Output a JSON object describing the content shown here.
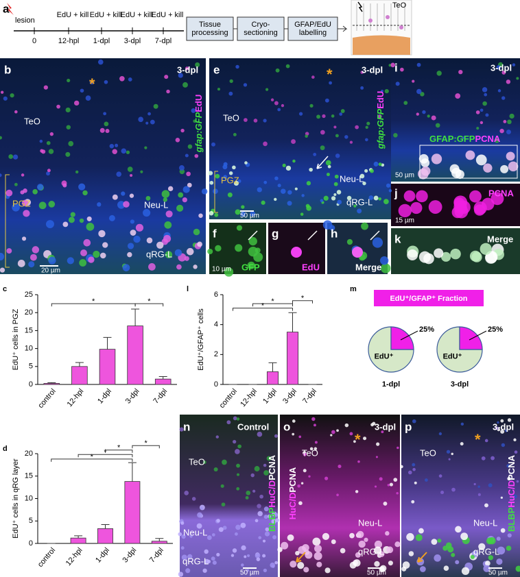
{
  "timeline": {
    "label": "a",
    "lesion": "lesion",
    "points": [
      "0",
      "12-hpl",
      "1-dpl",
      "3-dpl",
      "7-dpl"
    ],
    "treatments": [
      "EdU + kill",
      "EdU + kill",
      "EdU + kill",
      "EdU + kill"
    ],
    "steps": [
      [
        "Tissue",
        "processing"
      ],
      [
        "Cryo-",
        "sectioning"
      ],
      [
        "GFAP/EdU",
        "labelling"
      ]
    ],
    "schematic_label": "TeO"
  },
  "images": {
    "b": {
      "label": "b",
      "condition": "3-dpl",
      "marker": "*",
      "regions": [
        "TeO",
        "PGZ",
        "Neu-L",
        "qRG-L"
      ],
      "stain": [
        "gfap:GFP",
        "EdU"
      ],
      "scale": "20 µm"
    },
    "e": {
      "label": "e",
      "condition": "3-dpl",
      "marker": "*",
      "regions": [
        "TeO",
        "PGZ",
        "Neu-L",
        "qRG-L"
      ],
      "stain": [
        "gfap:GFP",
        "EdU"
      ],
      "scale": "50 µm"
    },
    "f": {
      "label": "f",
      "channel": "GFP",
      "scale": "10 µm"
    },
    "g": {
      "label": "g",
      "channel": "EdU"
    },
    "h": {
      "label": "h",
      "channel": "Merge"
    },
    "i": {
      "label": "i",
      "condition": "3-dpl",
      "stain": [
        "GFAP:GFP",
        "PCNA"
      ],
      "scale": "50 µm"
    },
    "j": {
      "label": "j",
      "channel": "PCNA",
      "scale": "15 µm"
    },
    "k": {
      "label": "k",
      "channel": "Merge"
    },
    "n": {
      "label": "n",
      "condition": "Control",
      "regions": [
        "TeO",
        "Neu-L",
        "qRG-L"
      ],
      "stain": [
        "BLBP",
        "HuC/D",
        "PCNA"
      ],
      "scale": "50 µm"
    },
    "o": {
      "label": "o",
      "condition": "3-dpl",
      "marker": "*",
      "regions": [
        "TeO",
        "Neu-L",
        "qRG-L"
      ],
      "stain": [
        "HuC/D",
        "PCNA"
      ],
      "scale": "50 µm"
    },
    "p": {
      "label": "p",
      "condition": "3-dpl",
      "marker": "*",
      "regions": [
        "TeO",
        "Neu-L",
        "qRG-L"
      ],
      "stain": [
        "BLBP",
        "HuC/D",
        "PCNA"
      ],
      "scale": "50 µm"
    }
  },
  "chart_data": [
    {
      "type": "bar",
      "label": "c",
      "ylabel": "EdU⁺ cells in PGZ",
      "color": "#ee55dd",
      "categories": [
        "control",
        "12-hpl",
        "1-dpl",
        "3-dpl",
        "7-dpl"
      ],
      "values": [
        0.3,
        5,
        9.8,
        16.3,
        1.5
      ],
      "errors": [
        0.2,
        1.1,
        3.3,
        4.7,
        0.7
      ],
      "ylim": [
        0,
        25
      ],
      "yticks": [
        0,
        5,
        10,
        15,
        20,
        25
      ],
      "significance": [
        {
          "between": [
            0,
            3
          ],
          "y": 22.5,
          "label": "*"
        },
        {
          "between": [
            3,
            4
          ],
          "y": 22.5,
          "label": "*"
        }
      ]
    },
    {
      "type": "bar",
      "label": "l",
      "ylabel": "EdU⁺/GFAP⁺ cells",
      "color": "#ee55dd",
      "categories": [
        "control",
        "12-hpl",
        "1-dpl",
        "3-dpl",
        "7-dpl"
      ],
      "values": [
        0,
        0,
        0.85,
        3.5,
        0
      ],
      "errors": [
        0,
        0,
        0.6,
        1.3,
        0
      ],
      "ylim": [
        0,
        6
      ],
      "yticks": [
        0,
        2,
        4,
        6
      ],
      "significance": [
        {
          "between": [
            0,
            3
          ],
          "y": 5.1,
          "label": "*"
        },
        {
          "between": [
            1,
            3
          ],
          "y": 5.4,
          "label": "*"
        },
        {
          "between": [
            3,
            4
          ],
          "y": 5.6,
          "label": "*"
        }
      ]
    },
    {
      "type": "bar",
      "label": "d",
      "ylabel": "EdU⁺ cells in qRG layer",
      "color": "#ee55dd",
      "categories": [
        "control",
        "12-hpl",
        "1-dpl",
        "3-dpl",
        "7-dpl"
      ],
      "values": [
        0,
        1.2,
        3.3,
        13.8,
        0.5
      ],
      "errors": [
        0,
        0.5,
        0.9,
        4.2,
        0.6
      ],
      "ylim": [
        0,
        20
      ],
      "yticks": [
        0,
        5,
        10,
        15,
        20
      ],
      "significance": [
        {
          "between": [
            0,
            3
          ],
          "y": 18.8,
          "label": "*"
        },
        {
          "between": [
            1,
            3
          ],
          "y": 19.8,
          "label": "*"
        },
        {
          "between": [
            2,
            3
          ],
          "y": 20.8,
          "label": "*"
        },
        {
          "between": [
            3,
            4
          ],
          "y": 21.8,
          "label": "*"
        }
      ]
    },
    {
      "type": "pie",
      "label": "m",
      "title": "EdU⁺/GFAP⁺ Fraction",
      "pies": [
        {
          "name": "1-dpl",
          "slices": [
            {
              "name": "EdU⁺",
              "value": 75,
              "color": "#d6e8c8"
            },
            {
              "value": 25,
              "value_label": "25%",
              "color": "#f020e8"
            }
          ]
        },
        {
          "name": "3-dpl",
          "slices": [
            {
              "name": "EdU⁺",
              "value": 75,
              "color": "#d6e8c8"
            },
            {
              "value": 25,
              "value_label": "25%",
              "color": "#f020e8"
            }
          ]
        }
      ]
    }
  ]
}
